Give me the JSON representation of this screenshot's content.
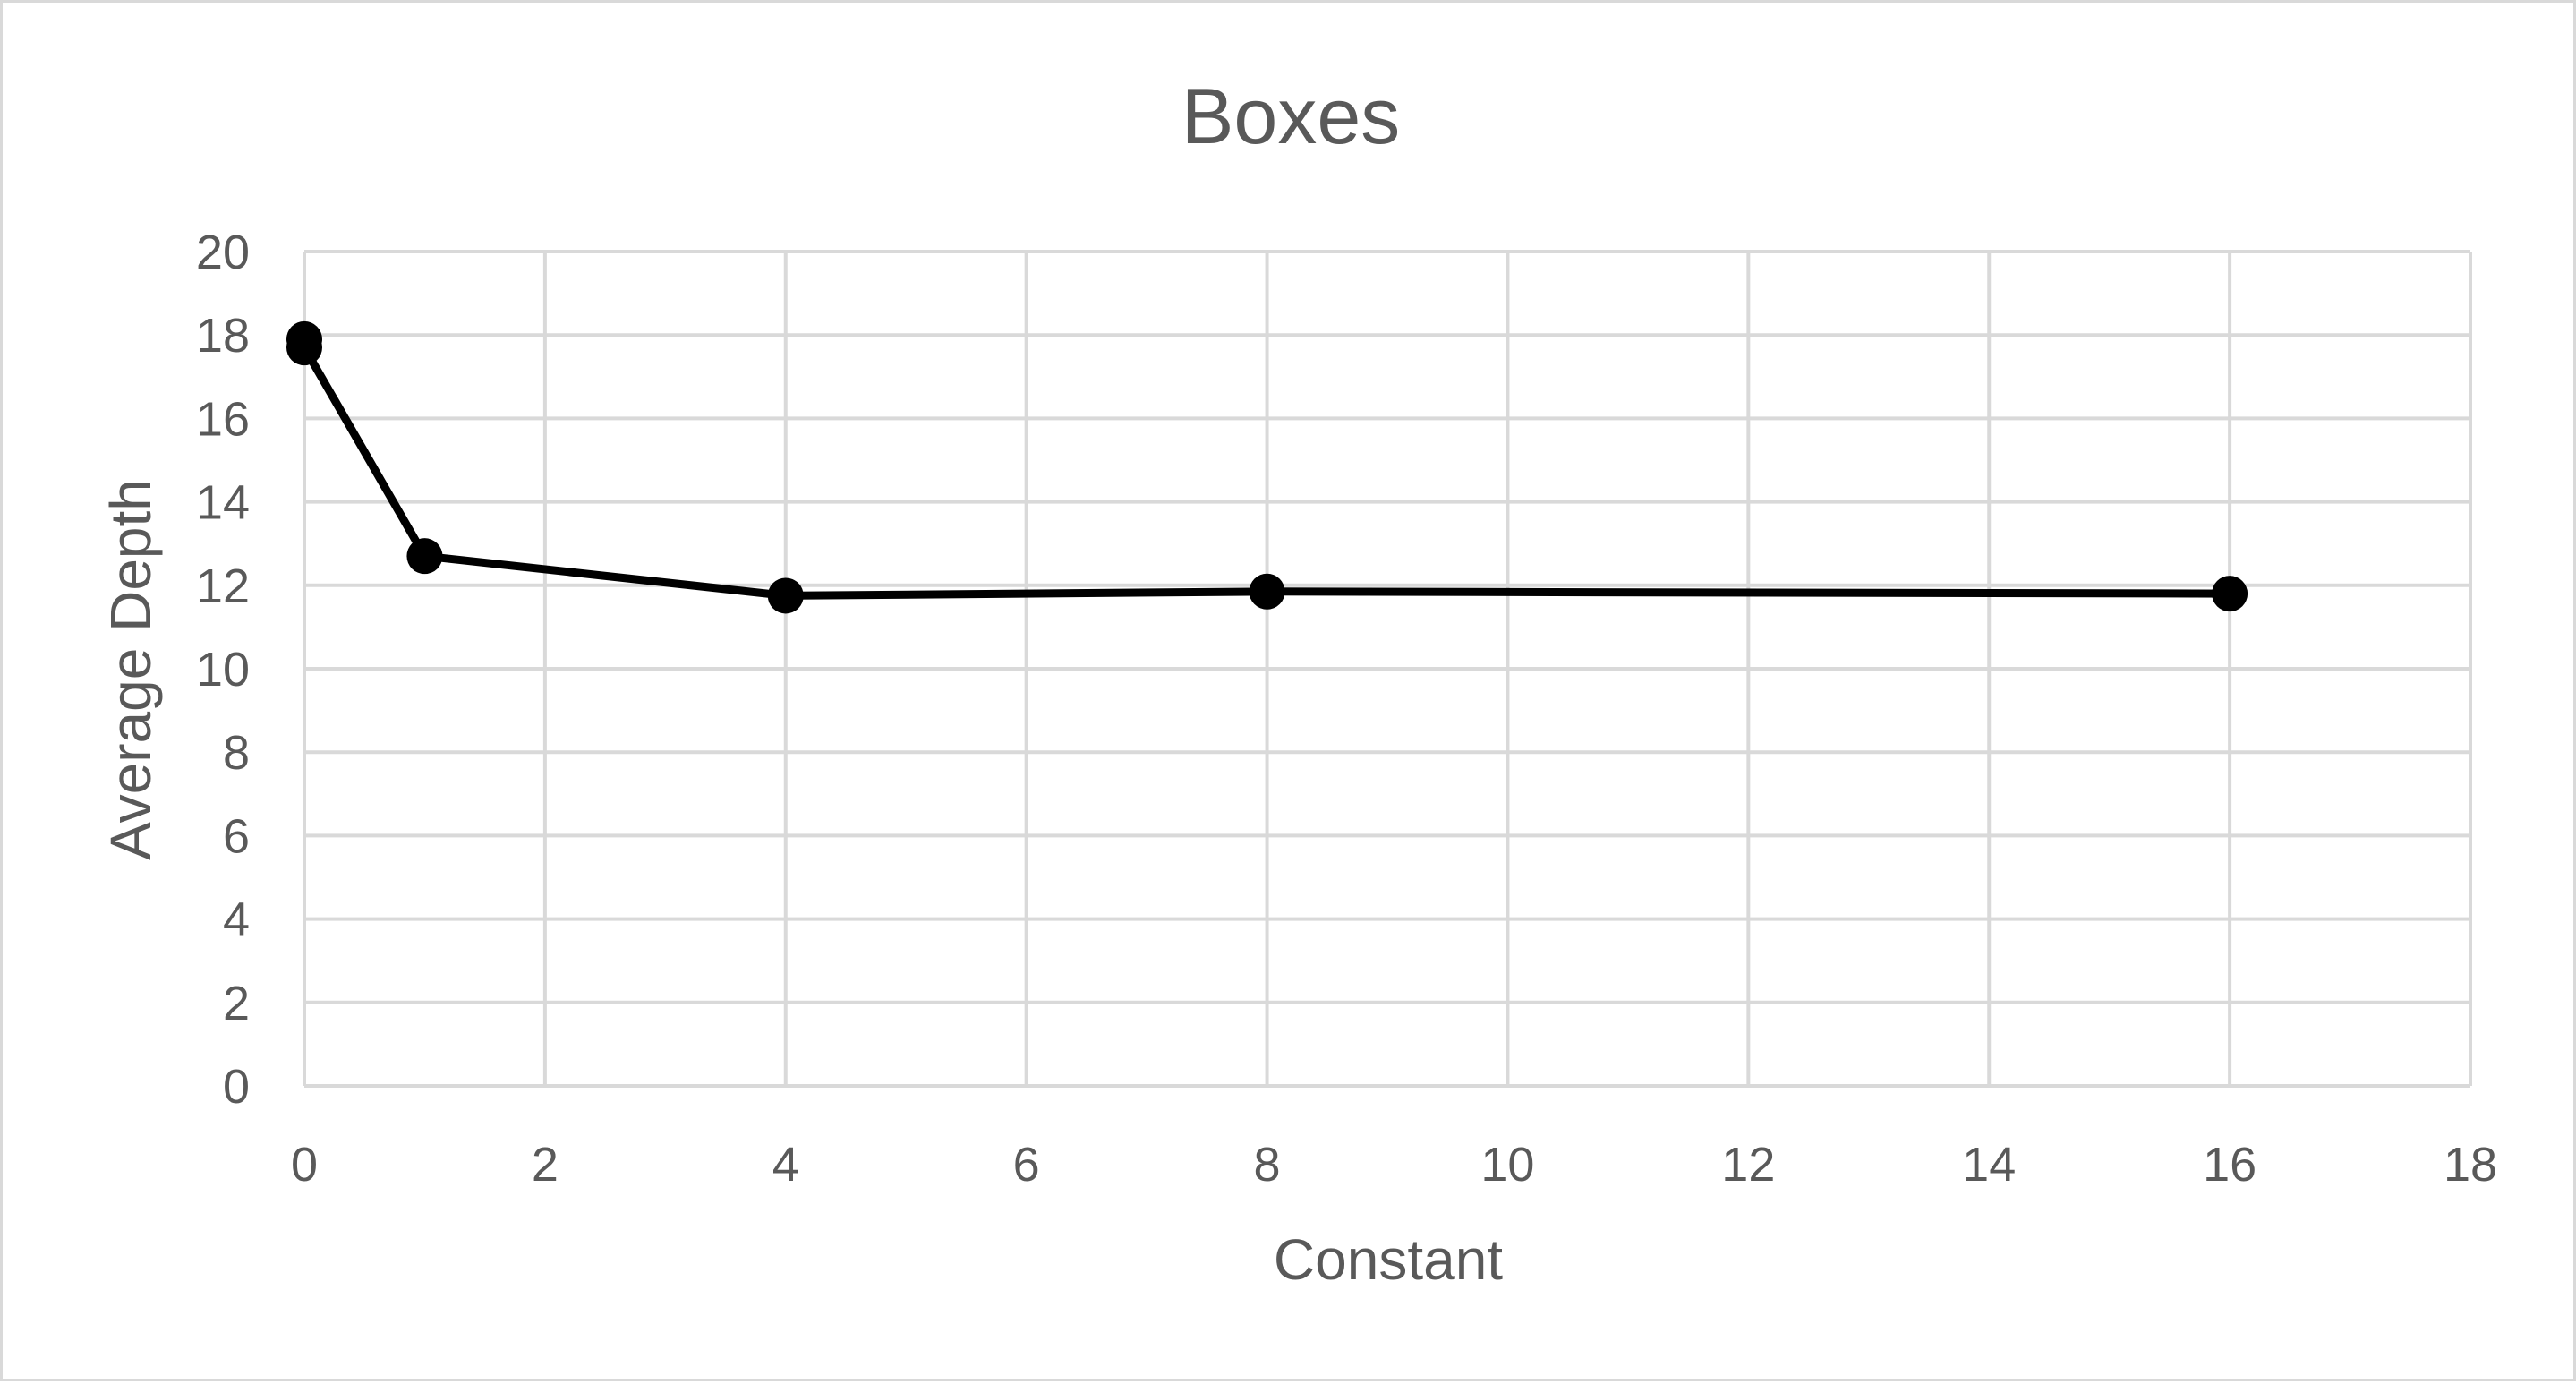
{
  "chart_data": {
    "type": "scatter",
    "title": "Boxes",
    "xlabel": "Constant",
    "ylabel": "Average Depth",
    "xlim": [
      0,
      18
    ],
    "ylim": [
      0,
      20
    ],
    "x_ticks": [
      "0",
      "2",
      "4",
      "6",
      "8",
      "10",
      "12",
      "14",
      "16",
      "18"
    ],
    "y_ticks": [
      "0",
      "2",
      "4",
      "6",
      "8",
      "10",
      "12",
      "14",
      "16",
      "18",
      "20"
    ],
    "grid": true,
    "legend": "none",
    "series": [
      {
        "x": [
          0,
          0,
          1,
          4,
          8,
          16
        ],
        "y": [
          17.9,
          17.7,
          12.7,
          11.75,
          11.85,
          11.8
        ],
        "color": "#000000",
        "marker": "circle",
        "line": "straight"
      }
    ],
    "colors": {
      "line": "#000000",
      "grid": "#d9d9d9",
      "text": "#595959",
      "border": "#d9d9d9"
    }
  }
}
